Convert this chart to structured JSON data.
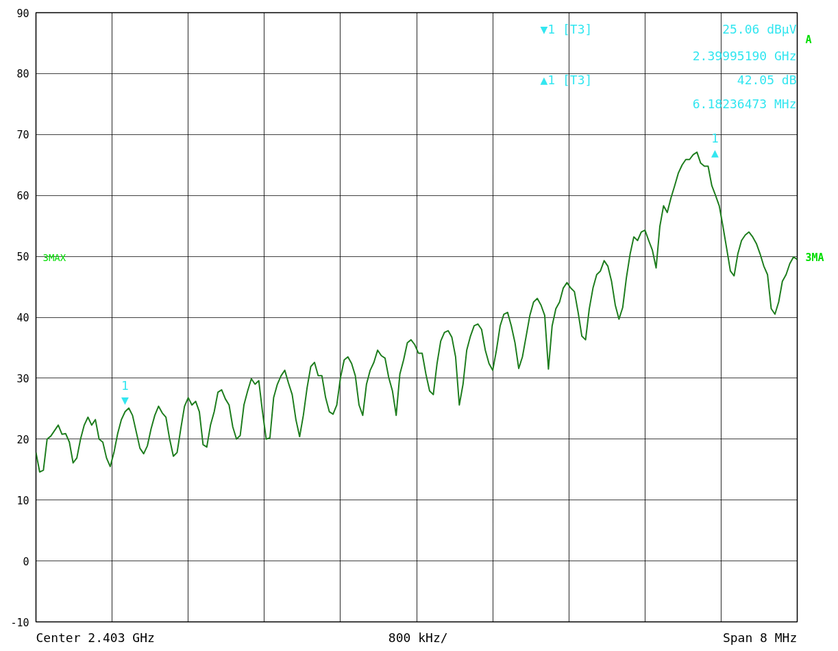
{
  "chart_data": {
    "type": "line",
    "ylim": [
      -10,
      90
    ],
    "categories": [
      null,
      null,
      null,
      null,
      null,
      null,
      null,
      null,
      null,
      null,
      null,
      null,
      null,
      null,
      null,
      null,
      null,
      null,
      null,
      null,
      null,
      null,
      null,
      null,
      null,
      null,
      null,
      null,
      null,
      null,
      null,
      null,
      null,
      null,
      null,
      null,
      null,
      null,
      null,
      null,
      null,
      null,
      null,
      null,
      null,
      null,
      null,
      null,
      null,
      null,
      null,
      null,
      null,
      null,
      null,
      null,
      null,
      null,
      null,
      null,
      null,
      null,
      null,
      null,
      null,
      null,
      null,
      null,
      null,
      null,
      null,
      null,
      null,
      null,
      null,
      null,
      null,
      null,
      null,
      null,
      null,
      null,
      null,
      null,
      null,
      null,
      null,
      null,
      null,
      null,
      null,
      null,
      null,
      null,
      null,
      null,
      null,
      null,
      null,
      null,
      null,
      null,
      null,
      null,
      null,
      null,
      null,
      null,
      null,
      null,
      null,
      null,
      null,
      null,
      null,
      null,
      null,
      null,
      null,
      null,
      null,
      null,
      null,
      null,
      null,
      null,
      null,
      null,
      null,
      null,
      null,
      null,
      null,
      null,
      null,
      null,
      null,
      null,
      null,
      null,
      null,
      null,
      null,
      null,
      null,
      null,
      null,
      null,
      null,
      null,
      null,
      null,
      null,
      null,
      null,
      null,
      null,
      null,
      null,
      null,
      null,
      null,
      null,
      null,
      null,
      null,
      null,
      null,
      null,
      null,
      null,
      null,
      null,
      null,
      null,
      null,
      null,
      null,
      null,
      null,
      null,
      null,
      null,
      null,
      null,
      null,
      null,
      null,
      null,
      null,
      null,
      null,
      null,
      null,
      null,
      null,
      null,
      null,
      null,
      null,
      null,
      null,
      null,
      null,
      null,
      null
    ],
    "yticks": [
      -10,
      0,
      10,
      20,
      30,
      40,
      50,
      60,
      70,
      80,
      90
    ],
    "grid": true,
    "tick_labels": "y",
    "series": [
      {
        "color": "#1e7d1e",
        "values": [
          17.8,
          14.6,
          14.9,
          20.0,
          20.5,
          21.4,
          22.3,
          20.8,
          20.9,
          19.5,
          16.1,
          16.9,
          20.0,
          22.3,
          23.6,
          22.3,
          23.2,
          20.0,
          19.5,
          16.9,
          15.5,
          17.8,
          20.9,
          23.2,
          24.5,
          25.1,
          23.9,
          21.2,
          18.5,
          17.6,
          18.9,
          21.7,
          23.9,
          25.4,
          24.3,
          23.6,
          20.0,
          17.2,
          17.8,
          21.7,
          25.4,
          26.8,
          25.6,
          26.2,
          24.5,
          19.1,
          18.7,
          22.3,
          24.5,
          27.7,
          28.1,
          26.6,
          25.6,
          22.0,
          20.0,
          20.6,
          25.6,
          27.9,
          29.9,
          29.0,
          29.6,
          24.5,
          20.0,
          20.2,
          26.8,
          29.0,
          30.4,
          31.3,
          29.2,
          27.3,
          23.2,
          20.4,
          23.9,
          28.4,
          31.9,
          32.6,
          30.4,
          30.4,
          26.8,
          24.5,
          24.1,
          25.6,
          30.1,
          33.0,
          33.5,
          32.4,
          30.4,
          25.6,
          23.9,
          29.0,
          31.3,
          32.6,
          34.6,
          33.7,
          33.3,
          30.1,
          27.9,
          23.9,
          30.7,
          33.0,
          35.8,
          36.3,
          35.5,
          34.1,
          34.1,
          30.7,
          27.9,
          27.3,
          32.4,
          36.1,
          37.5,
          37.8,
          36.7,
          33.5,
          25.6,
          29.0,
          34.6,
          36.9,
          38.6,
          38.9,
          38.0,
          34.6,
          32.4,
          31.3,
          34.6,
          38.6,
          40.5,
          40.8,
          38.6,
          35.8,
          31.6,
          33.5,
          36.9,
          40.3,
          42.5,
          43.1,
          42.0,
          40.3,
          31.5,
          38.6,
          41.4,
          42.5,
          44.8,
          45.7,
          44.8,
          44.2,
          40.8,
          36.9,
          36.3,
          41.4,
          44.8,
          47.0,
          47.6,
          49.3,
          48.4,
          45.9,
          42.0,
          39.7,
          41.6,
          46.5,
          50.4,
          53.2,
          52.6,
          54.0,
          54.3,
          52.6,
          51.0,
          48.1,
          54.9,
          58.3,
          57.2,
          59.6,
          61.6,
          63.7,
          65.0,
          65.9,
          65.9,
          66.7,
          67.1,
          65.3,
          64.8,
          64.8,
          61.6,
          60.0,
          58.3,
          54.9,
          51.3,
          47.6,
          46.8,
          50.4,
          52.6,
          53.5,
          54.0,
          53.2,
          52.1,
          50.4,
          48.4,
          47.0,
          41.4,
          40.5,
          42.5,
          45.9,
          47.0,
          48.8,
          49.9,
          49.5
        ]
      }
    ],
    "annotations": [
      "▼1 [T3]",
      "25.06 dBµV",
      "2.39995190 GHz",
      "▲1 [T3]",
      "42.05 dB",
      "6.18236473 MHz",
      "A",
      "3MAX",
      "3MA",
      "Center 2.403 GHz",
      "800 kHz/",
      "Span 8 MHz",
      "1\n▼",
      "1\n▲"
    ]
  }
}
